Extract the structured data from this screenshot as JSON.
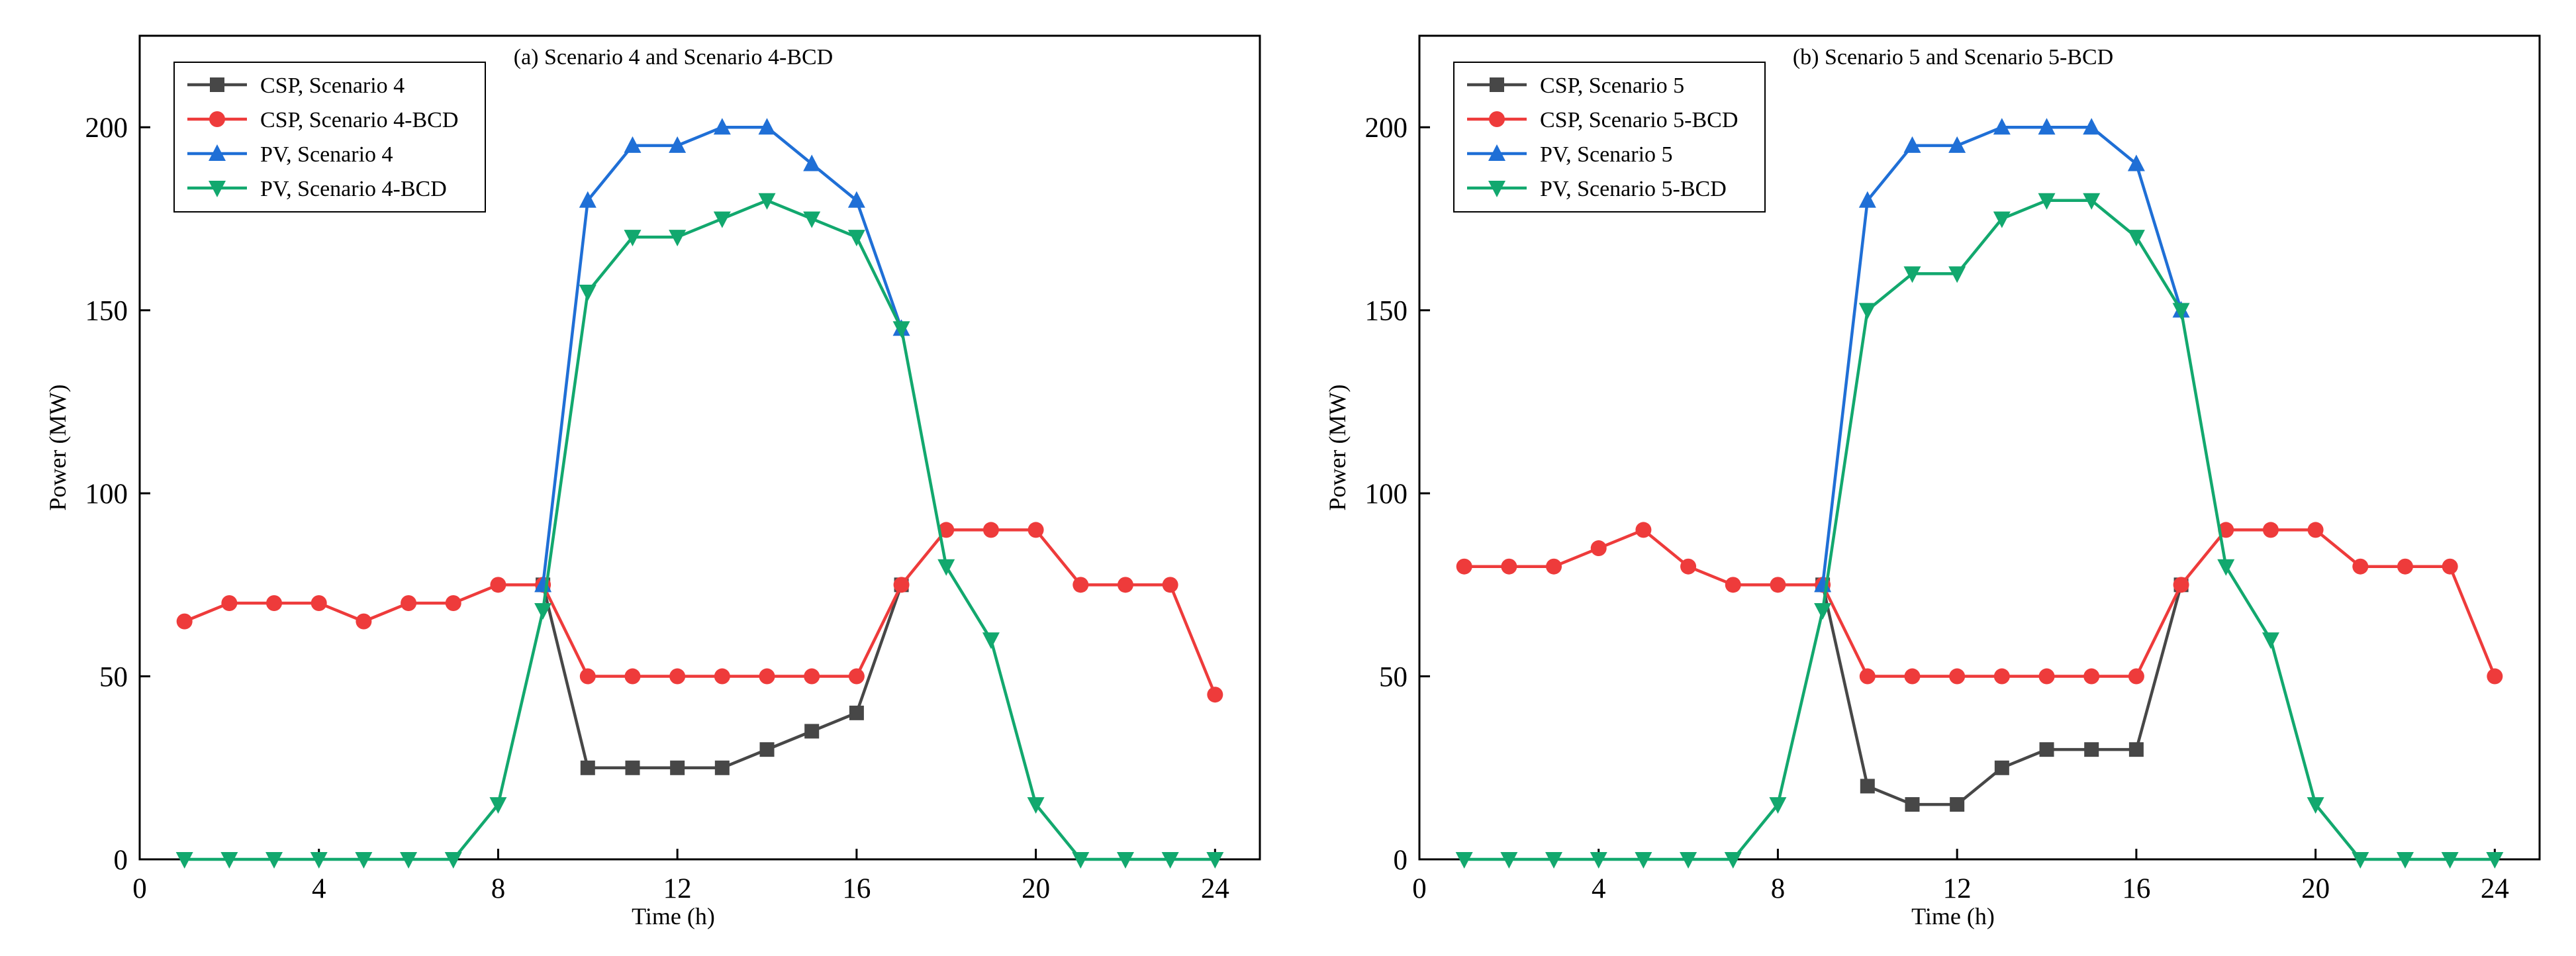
{
  "chart_data": [
    {
      "type": "line",
      "title": "(a) Scenario 4 and Scenario 4-BCD",
      "xlabel": "Time (h)",
      "ylabel": "Power (MW)",
      "xlim": [
        0,
        25
      ],
      "ylim": [
        0,
        225
      ],
      "xticks": [
        0,
        4,
        8,
        12,
        16,
        20,
        24
      ],
      "yticks": [
        0,
        50,
        100,
        150,
        200
      ],
      "grid": false,
      "legend_position": "top-left",
      "x": [
        1,
        2,
        3,
        4,
        5,
        6,
        7,
        8,
        9,
        10,
        11,
        12,
        13,
        14,
        15,
        16,
        17,
        18,
        19,
        20,
        21,
        22,
        23,
        24
      ],
      "series": [
        {
          "name": "CSP, Scenario 4",
          "color": "#474747",
          "marker": "square",
          "values": [
            null,
            null,
            null,
            null,
            null,
            null,
            null,
            null,
            75,
            25,
            25,
            25,
            25,
            30,
            35,
            40,
            75,
            null,
            null,
            null,
            null,
            null,
            null,
            null
          ]
        },
        {
          "name": "CSP, Scenario 4-BCD",
          "color": "#ee3b3b",
          "marker": "circle",
          "values": [
            65,
            70,
            70,
            70,
            65,
            70,
            70,
            75,
            75,
            50,
            50,
            50,
            50,
            50,
            50,
            50,
            75,
            90,
            90,
            90,
            75,
            75,
            75,
            45
          ]
        },
        {
          "name": "PV, Scenario 4",
          "color": "#1f6fd6",
          "marker": "triangle-up",
          "values": [
            null,
            null,
            null,
            null,
            null,
            null,
            null,
            null,
            75,
            180,
            195,
            195,
            200,
            200,
            190,
            180,
            145,
            null,
            null,
            null,
            null,
            null,
            null,
            null
          ]
        },
        {
          "name": "PV, Scenario 4-BCD",
          "color": "#12a86e",
          "marker": "triangle-down",
          "values": [
            0,
            0,
            0,
            0,
            0,
            0,
            0,
            15,
            68,
            155,
            170,
            170,
            175,
            180,
            175,
            170,
            145,
            80,
            60,
            15,
            0,
            0,
            0,
            0
          ]
        }
      ]
    },
    {
      "type": "line",
      "title": "(b) Scenario 5 and Scenario 5-BCD",
      "xlabel": "Time (h)",
      "ylabel": "Power (MW)",
      "xlim": [
        0,
        25
      ],
      "ylim": [
        0,
        225
      ],
      "xticks": [
        0,
        4,
        8,
        12,
        16,
        20,
        24
      ],
      "yticks": [
        0,
        50,
        100,
        150,
        200
      ],
      "grid": false,
      "legend_position": "top-left",
      "x": [
        1,
        2,
        3,
        4,
        5,
        6,
        7,
        8,
        9,
        10,
        11,
        12,
        13,
        14,
        15,
        16,
        17,
        18,
        19,
        20,
        21,
        22,
        23,
        24
      ],
      "series": [
        {
          "name": "CSP, Scenario 5",
          "color": "#474747",
          "marker": "square",
          "values": [
            null,
            null,
            null,
            null,
            null,
            null,
            null,
            null,
            75,
            20,
            15,
            15,
            25,
            30,
            30,
            30,
            75,
            null,
            null,
            null,
            null,
            null,
            null,
            null
          ]
        },
        {
          "name": "CSP, Scenario 5-BCD",
          "color": "#ee3b3b",
          "marker": "circle",
          "values": [
            80,
            80,
            80,
            85,
            90,
            80,
            75,
            75,
            75,
            50,
            50,
            50,
            50,
            50,
            50,
            50,
            75,
            90,
            90,
            90,
            80,
            80,
            80,
            50
          ]
        },
        {
          "name": "PV, Scenario 5",
          "color": "#1f6fd6",
          "marker": "triangle-up",
          "values": [
            null,
            null,
            null,
            null,
            null,
            null,
            null,
            null,
            75,
            180,
            195,
            195,
            200,
            200,
            200,
            190,
            150,
            null,
            null,
            null,
            null,
            null,
            null,
            null
          ]
        },
        {
          "name": "PV, Scenario 5-BCD",
          "color": "#12a86e",
          "marker": "triangle-down",
          "values": [
            0,
            0,
            0,
            0,
            0,
            0,
            0,
            15,
            68,
            150,
            160,
            160,
            175,
            180,
            180,
            170,
            150,
            80,
            60,
            15,
            0,
            0,
            0,
            0
          ]
        }
      ]
    }
  ]
}
